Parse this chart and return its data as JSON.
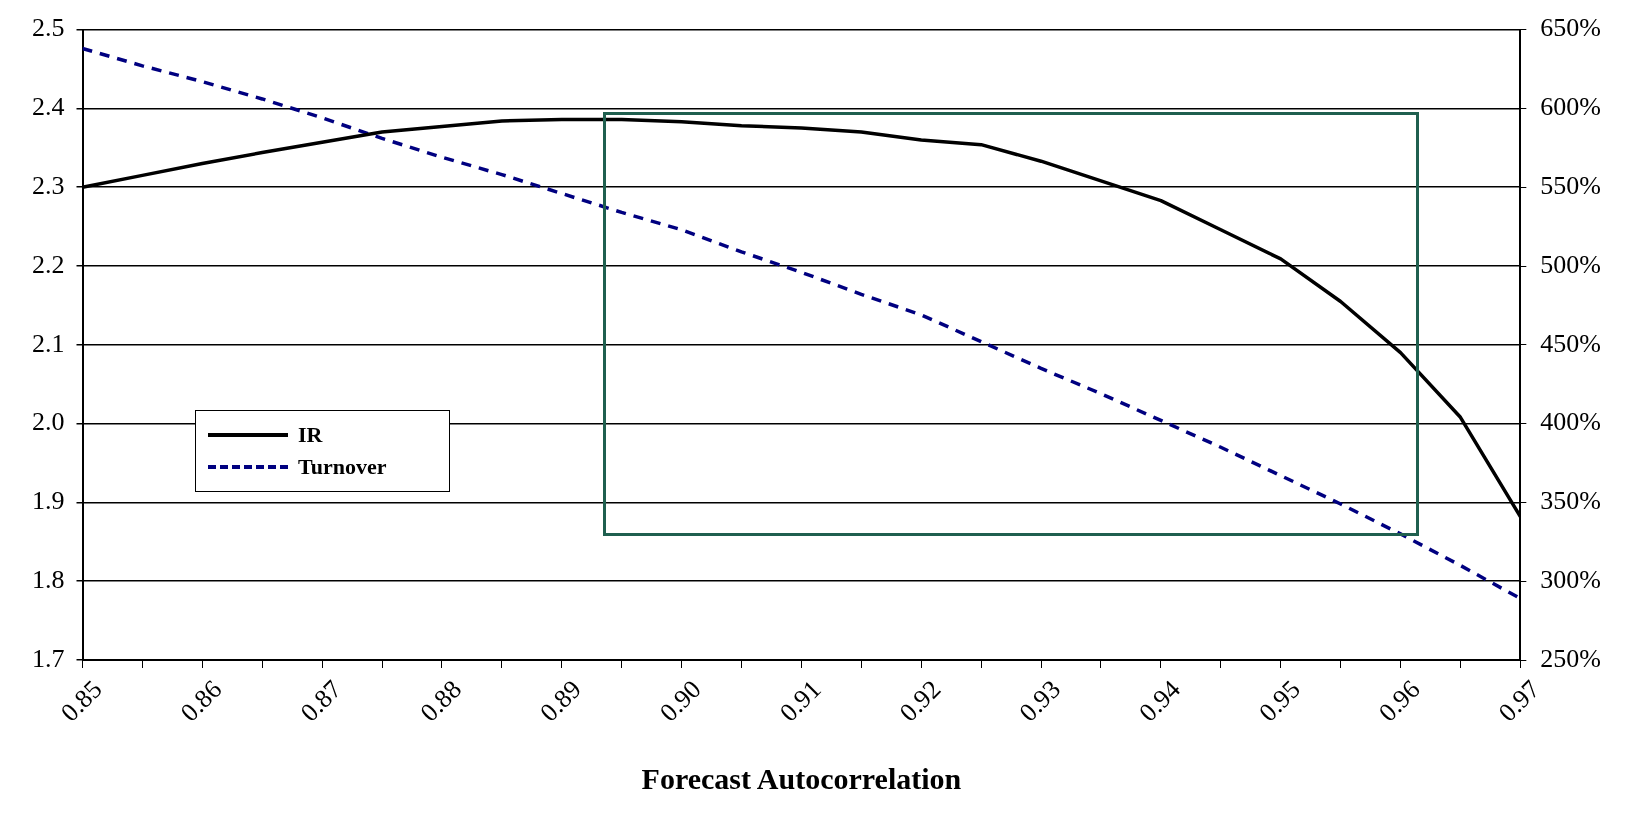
{
  "chart_data": {
    "type": "line",
    "xlabel": "Forecast Autocorrelation",
    "x": [
      0.85,
      0.855,
      0.86,
      0.865,
      0.87,
      0.875,
      0.88,
      0.885,
      0.89,
      0.895,
      0.9,
      0.905,
      0.91,
      0.915,
      0.92,
      0.925,
      0.93,
      0.935,
      0.94,
      0.945,
      0.95,
      0.955,
      0.96,
      0.965,
      0.97
    ],
    "series": [
      {
        "name": "IR",
        "color": "#000000",
        "line_style": "solid",
        "values": [
          2.3,
          2.315,
          2.33,
          2.344,
          2.357,
          2.37,
          2.377,
          2.384,
          2.386,
          2.386,
          2.383,
          2.378,
          2.375,
          2.37,
          2.36,
          2.354,
          2.333,
          2.308,
          2.283,
          2.246,
          2.209,
          2.155,
          2.09,
          2.008,
          1.882
        ]
      },
      {
        "name": "Turnover",
        "color": "#000080",
        "line_style": "dashed",
        "axis": "y2",
        "values": [
          638,
          627,
          617,
          606,
          594,
          581,
          569,
          558,
          546,
          534,
          523,
          509,
          496,
          482,
          469,
          452,
          435,
          419,
          402,
          385,
          367,
          349,
          330,
          310,
          289
        ]
      }
    ],
    "xlim": [
      0.85,
      0.97
    ],
    "xticks": [
      0.85,
      {
        "value": 0.855,
        "label": null
      },
      0.86,
      {
        "value": 0.865,
        "label": null
      },
      0.87,
      {
        "value": 0.875,
        "label": null
      },
      0.88,
      {
        "value": 0.885,
        "label": null
      },
      0.89,
      {
        "value": 0.895,
        "label": null
      },
      {
        "value": 0.9,
        "label": "0.90"
      },
      {
        "value": 0.905,
        "label": null
      },
      0.91,
      {
        "value": 0.915,
        "label": null
      },
      0.92,
      {
        "value": 0.925,
        "label": null
      },
      0.93,
      {
        "value": 0.935,
        "label": null
      },
      0.94,
      {
        "value": 0.945,
        "label": null
      },
      0.95,
      {
        "value": 0.955,
        "label": null
      },
      0.96,
      {
        "value": 0.965,
        "label": null
      },
      0.97
    ],
    "ylim": [
      1.7,
      2.5
    ],
    "yticks": [
      1.7,
      1.8,
      1.9,
      {
        "value": 2.0,
        "label": "2.0"
      },
      2.1,
      2.2,
      2.3,
      2.4,
      2.5
    ],
    "y2lim": [
      250,
      650
    ],
    "y2ticks": [
      {
        "value": 250,
        "label": "250%"
      },
      {
        "value": 300,
        "label": "300%"
      },
      {
        "value": 350,
        "label": "350%"
      },
      {
        "value": 400,
        "label": "400%"
      },
      {
        "value": 450,
        "label": "450%"
      },
      {
        "value": 500,
        "label": "500%"
      },
      {
        "value": 550,
        "label": "550%"
      },
      {
        "value": 600,
        "label": "600%"
      },
      {
        "value": 650,
        "label": "650%"
      }
    ],
    "grid": "y",
    "legend": "left",
    "marker": "none"
  }
}
